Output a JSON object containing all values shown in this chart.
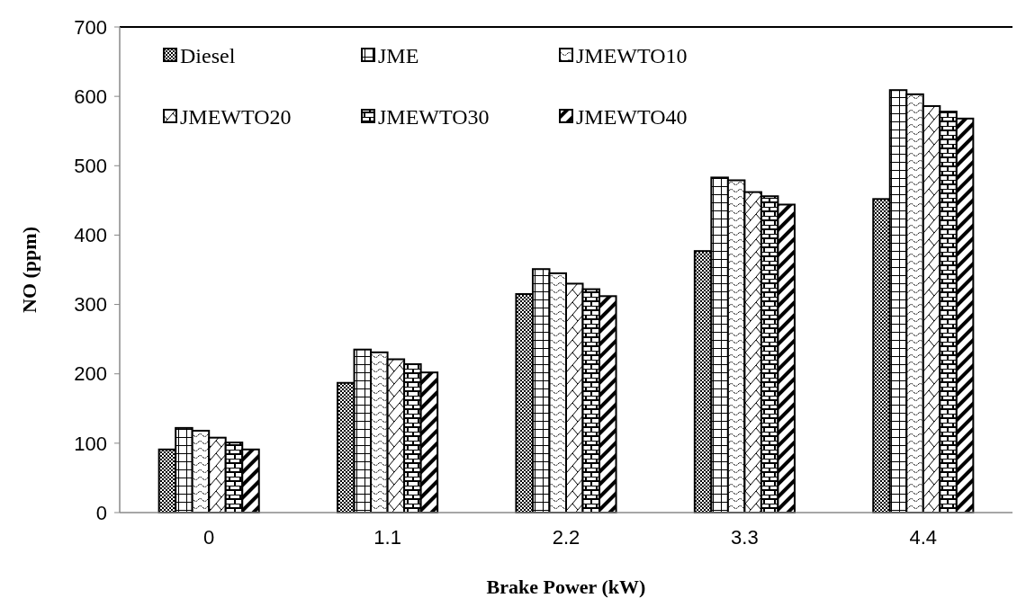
{
  "chart_data": {
    "type": "bar",
    "xlabel": "Brake Power (kW)",
    "ylabel": "NO (ppm)",
    "categories": [
      "0",
      "1.1",
      "2.2",
      "3.3",
      "4.4"
    ],
    "series": [
      {
        "name": "Diesel",
        "color": "#000000",
        "values": [
          91,
          187,
          315,
          377,
          452
        ]
      },
      {
        "name": "JME",
        "color": "#000000",
        "values": [
          122,
          235,
          351,
          483,
          609
        ]
      },
      {
        "name": "JMEWTO10",
        "color": "#000000",
        "values": [
          118,
          231,
          345,
          479,
          603
        ]
      },
      {
        "name": "JMEWTO20",
        "color": "#000000",
        "values": [
          108,
          221,
          330,
          462,
          586
        ]
      },
      {
        "name": "JMEWTO30",
        "color": "#000000",
        "values": [
          101,
          214,
          322,
          456,
          578
        ]
      },
      {
        "name": "JMEWTO40",
        "color": "#000000",
        "values": [
          91,
          202,
          312,
          444,
          568
        ]
      }
    ],
    "ylim": [
      0,
      700
    ],
    "yticks": [
      0,
      100,
      200,
      300,
      400,
      500,
      600,
      700
    ],
    "grid": false,
    "legend": "top left"
  }
}
